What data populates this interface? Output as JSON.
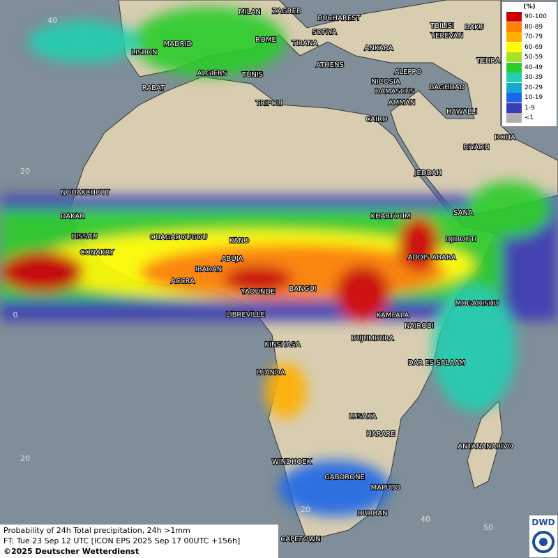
{
  "title": "Probability of 24h Total precipitation, 24h >1mm",
  "forecast_time": "FT: Tue 23 Sep 12 UTC [ICON EPS 2025 Sep 17 00UTC +156h]",
  "copyright": "©2025 Deutscher Wetterdienst",
  "logo": "DWD",
  "legend": {
    "title": "(%)",
    "items": [
      {
        "label": "90-100",
        "color": "#cc0000"
      },
      {
        "label": "80-89",
        "color": "#ff7f00"
      },
      {
        "label": "70-79",
        "color": "#ffb000"
      },
      {
        "label": "60-69",
        "color": "#ffff00"
      },
      {
        "label": "50-59",
        "color": "#a6e02a"
      },
      {
        "label": "40-49",
        "color": "#2ccc2c"
      },
      {
        "label": "30-39",
        "color": "#22d0b0"
      },
      {
        "label": "20-29",
        "color": "#14a8d2"
      },
      {
        "label": "10-19",
        "color": "#1e66e6"
      },
      {
        "label": "1-9",
        "color": "#3c3cb4"
      },
      {
        "label": "<1",
        "color": "#b0b0b0"
      }
    ]
  },
  "grid_labels": [
    "40",
    "20",
    "0",
    "20",
    "20",
    "40",
    "50"
  ],
  "cities": [
    "MILAN",
    "ZAGREB",
    "BUCHAREST",
    "SOFIYA",
    "TBILISI",
    "BAKU",
    "ROME",
    "TIRANA",
    "ANKARA",
    "YEREVAN",
    "MADRID",
    "LISBON",
    "TEHRA",
    "ALGIERS",
    "TUNIS",
    "ATHENS",
    "ALEPPO",
    "NICOSIA",
    "BAGHDAD",
    "RABAT",
    "DAMASCUS",
    "AMMAN",
    "TRIPOLI",
    "HAWALLI",
    "CAIRO",
    "DOHA",
    "RIYADH",
    "JEDDAH",
    "NOUAKCHOTT",
    "KHARTOUM",
    "SANA",
    "DAKAR",
    "BISSAU",
    "OUAGADOUGOU",
    "KANO",
    "DJIBOUTI",
    "CONAKRY",
    "ABUJA",
    "ADDIS ABABA",
    "IBADAN",
    "ACCRA",
    "YAOUNDE",
    "BANGUI",
    "MOGADISHU",
    "LIBREVILLE",
    "KAMPALA",
    "NAIROBI",
    "BUJUMBURA",
    "KINSHASA",
    "DAR ES SALAAM",
    "LUANDA",
    "LUSAKA",
    "HARARE",
    "ANTANANARIVO",
    "WINDHOEK",
    "GABORONE",
    "MAPUTO",
    "DURBAN",
    "CAPETOWN"
  ]
}
